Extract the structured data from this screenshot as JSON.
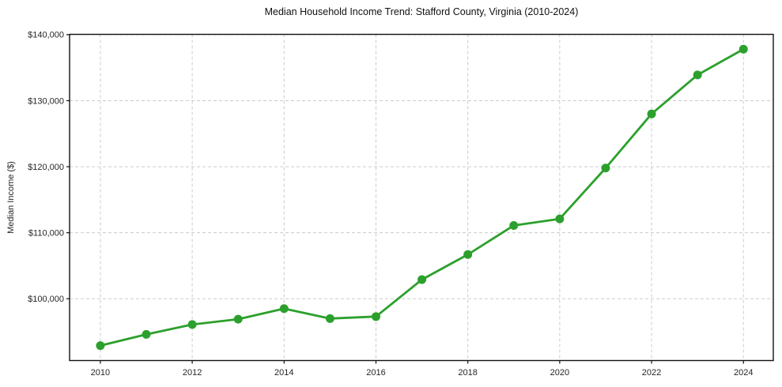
{
  "chart_data": {
    "type": "line",
    "title": "Median Household Income Trend: Stafford County, Virginia (2010-2024)",
    "xlabel": "",
    "ylabel": "Median Income ($)",
    "x": [
      2010,
      2011,
      2012,
      2013,
      2014,
      2015,
      2016,
      2017,
      2018,
      2019,
      2020,
      2021,
      2022,
      2023,
      2024
    ],
    "series": [
      {
        "name": "Median Household Income",
        "values": [
          92900,
          94600,
          96100,
          96900,
          98500,
          97000,
          97300,
          102900,
          106700,
          111100,
          112100,
          119800,
          128000,
          133900,
          137800
        ]
      }
    ],
    "xticks": {
      "values": [
        2010,
        2012,
        2014,
        2016,
        2018,
        2020,
        2022,
        2024
      ],
      "labels": [
        "2010",
        "2012",
        "2014",
        "2016",
        "2018",
        "2020",
        "2022",
        "2024"
      ]
    },
    "yticks": {
      "values": [
        100000,
        110000,
        120000,
        130000,
        140000
      ],
      "labels": [
        "$100,000",
        "$110,000",
        "$120,000",
        "$130,000",
        "$140,000"
      ]
    },
    "xlim": [
      2009.33,
      2024.65
    ],
    "ylim": [
      90640,
      140045
    ],
    "grid": true,
    "grid_style": "dashed",
    "legend": "none",
    "colors": {
      "line": "#2ca02c",
      "marker": "#2ca02c",
      "grid": "#cccccc",
      "spine": "#111111",
      "tick_label": "#262626",
      "background": "#ffffff"
    },
    "marker": "circle",
    "marker_radius": 5.5,
    "line_width": 2.8
  }
}
